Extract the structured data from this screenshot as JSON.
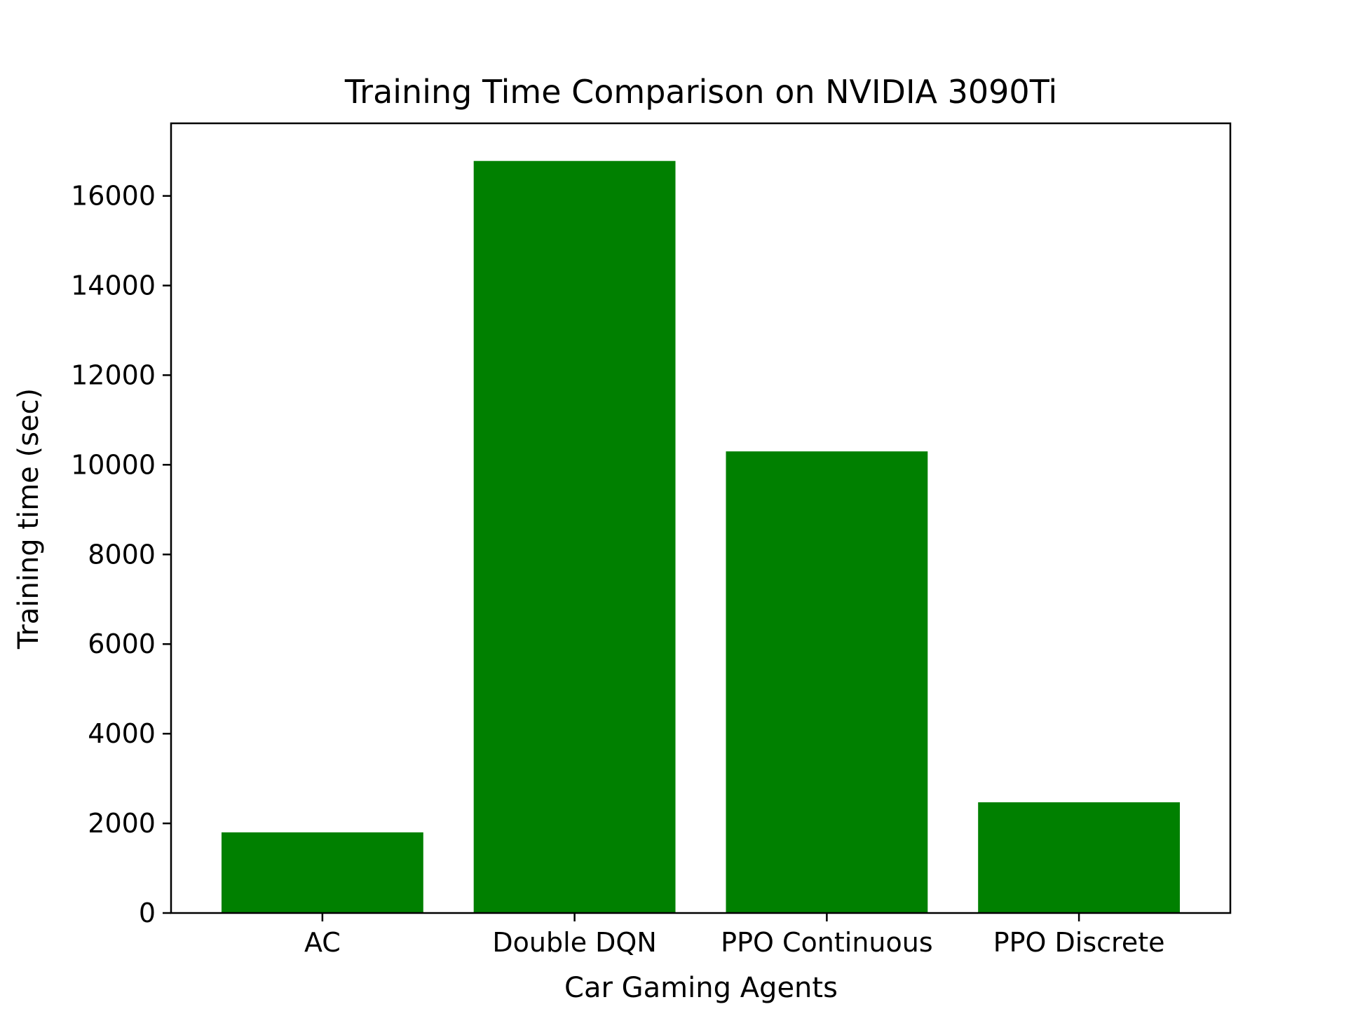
{
  "chart_data": {
    "type": "bar",
    "title": "Training Time Comparison on NVIDIA 3090Ti",
    "xlabel": "Car Gaming Agents",
    "ylabel": "Training time (sec)",
    "categories": [
      "AC",
      "Double DQN",
      "PPO Continuous",
      "PPO Discrete"
    ],
    "values": [
      1800,
      16780,
      10300,
      2470
    ],
    "yticks": [
      0,
      2000,
      4000,
      6000,
      8000,
      10000,
      12000,
      14000,
      16000
    ],
    "ylim": [
      0,
      17619
    ],
    "bar_color": "#008000",
    "grid": false,
    "legend": "none"
  }
}
